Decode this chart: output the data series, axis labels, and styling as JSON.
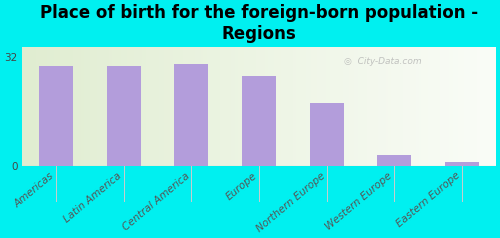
{
  "title": "Place of birth for the foreign-born population -\nRegions",
  "categories": [
    "Americas",
    "Latin America",
    "Central America",
    "Europe",
    "Northern Europe",
    "Western Europe",
    "Eastern Europe"
  ],
  "values": [
    29.5,
    29.5,
    30.0,
    26.5,
    18.5,
    3.2,
    1.2
  ],
  "bar_color": "#b39ddb",
  "background_color": "#00f0f0",
  "ylim": [
    0,
    35
  ],
  "yticks": [
    0,
    32
  ],
  "title_fontsize": 12,
  "tick_fontsize": 7.5,
  "watermark": "  City-Data.com",
  "watermark_icon": "◎"
}
